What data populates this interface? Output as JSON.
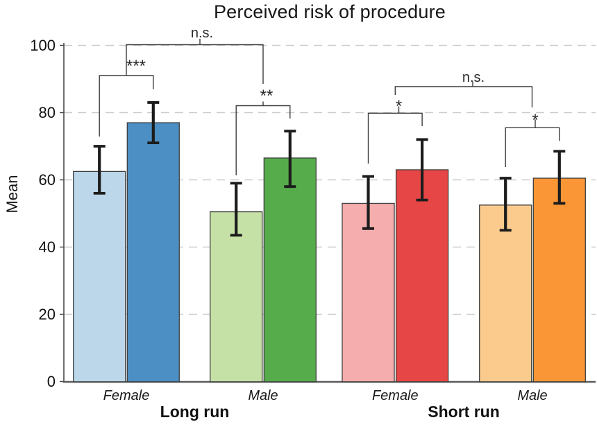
{
  "chart_data": {
    "type": "bar",
    "title": "Perceived risk of procedure",
    "xlabel": "",
    "ylabel": "Mean",
    "ylim": [
      0,
      100
    ],
    "yticks": [
      0,
      20,
      40,
      60,
      80,
      100
    ],
    "grid": {
      "horizontal_dashed_at": [
        20,
        40,
        60,
        80,
        100
      ],
      "color": "#cccccc"
    },
    "legend": null,
    "axis_color": "#4a4a4a",
    "error_bar_color": "#1c1c1c",
    "bracket_color": "#3c3c3c",
    "groups": [
      {
        "label": "Long run",
        "between_pair_significance": "n.s.",
        "pairs": [
          {
            "category": "Female",
            "significance": "***",
            "bars": [
              {
                "shade": "light-blue",
                "color": "#bcd6ea",
                "mean": 62.5,
                "err_low": 56,
                "err_high": 70
              },
              {
                "shade": "dark-blue",
                "color": "#4c8fc4",
                "mean": 77,
                "err_low": 71,
                "err_high": 83
              }
            ]
          },
          {
            "category": "Male",
            "significance": "**",
            "bars": [
              {
                "shade": "light-green",
                "color": "#c5e1a5",
                "mean": 50.5,
                "err_low": 43.5,
                "err_high": 59
              },
              {
                "shade": "dark-green",
                "color": "#56ac4b",
                "mean": 66.5,
                "err_low": 58,
                "err_high": 74.5
              }
            ]
          }
        ]
      },
      {
        "label": "Short run",
        "between_pair_significance": "n.s.",
        "pairs": [
          {
            "category": "Female",
            "significance": "*",
            "bars": [
              {
                "shade": "light-red",
                "color": "#f6adad",
                "mean": 53,
                "err_low": 45.5,
                "err_high": 61
              },
              {
                "shade": "dark-red",
                "color": "#e64645",
                "mean": 63,
                "err_low": 54,
                "err_high": 72
              }
            ]
          },
          {
            "category": "Male",
            "significance": "*",
            "bars": [
              {
                "shade": "light-orange",
                "color": "#facb8d",
                "mean": 52.5,
                "err_low": 45,
                "err_high": 60.5
              },
              {
                "shade": "dark-orange",
                "color": "#fa9636",
                "mean": 60.5,
                "err_low": 53,
                "err_high": 68.5
              }
            ]
          }
        ]
      }
    ]
  }
}
